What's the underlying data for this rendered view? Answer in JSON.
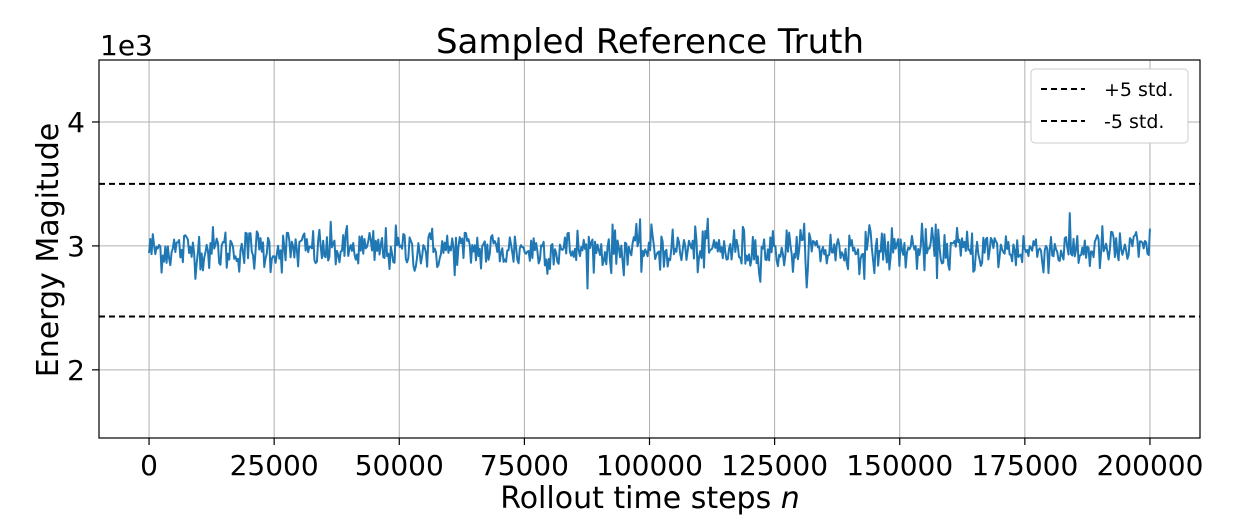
{
  "chart_data": {
    "type": "line",
    "title": "Sampled Reference Truth",
    "xlabel": "Rollout time steps ",
    "xlabel_var": "n",
    "ylabel": "Energy Magitude",
    "y_offset_label": "1e3",
    "xlim": [
      -10000,
      210000
    ],
    "ylim": [
      1.45,
      4.5
    ],
    "x_ticks": [
      0,
      25000,
      50000,
      75000,
      100000,
      125000,
      150000,
      175000,
      200000
    ],
    "x_tick_labels": [
      "0",
      "25000",
      "50000",
      "75000",
      "100000",
      "125000",
      "150000",
      "175000",
      "200000"
    ],
    "y_ticks": [
      2,
      3,
      4
    ],
    "y_tick_labels": [
      "2",
      "3",
      "4"
    ],
    "grid": true,
    "legend_position": "top-right",
    "series": [
      {
        "name": "",
        "color": "#1f77b4",
        "x_start": 0,
        "x_end": 200000,
        "points_count": 800,
        "mean": 2.97,
        "noise_std": 0.09,
        "min": 2.58,
        "max": 3.36
      }
    ],
    "reference_lines": [
      {
        "name": "+5 std.",
        "y": 3.5,
        "color": "#000000",
        "style": "dashed"
      },
      {
        "name": "-5 std.",
        "y": 2.43,
        "color": "#000000",
        "style": "dashed"
      }
    ]
  }
}
